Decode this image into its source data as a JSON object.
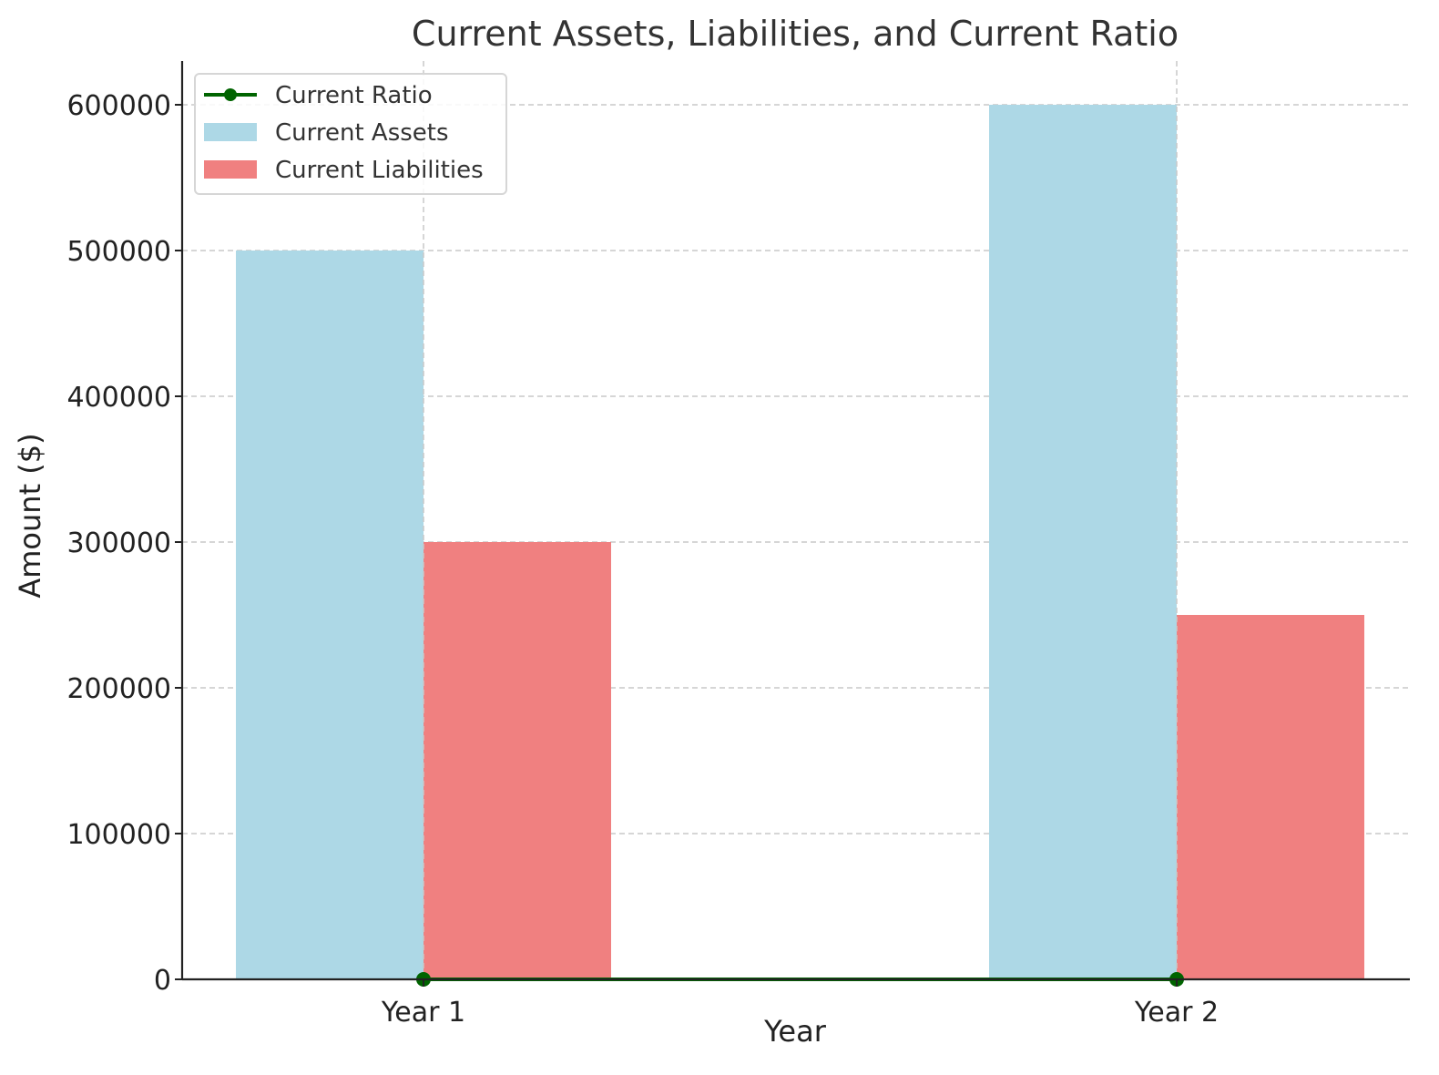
{
  "chart_data": {
    "type": "bar",
    "title": "Current Assets, Liabilities, and Current Ratio",
    "xlabel": "Year",
    "ylabel": "Amount ($)",
    "categories": [
      "Year 1",
      "Year 2"
    ],
    "ylim": [
      0,
      630000
    ],
    "yticks": [
      0,
      100000,
      200000,
      300000,
      400000,
      500000,
      600000
    ],
    "ytick_labels": [
      "0",
      "100000",
      "200000",
      "300000",
      "400000",
      "500000",
      "600000"
    ],
    "grid": true,
    "legend_position": "top-left",
    "series": [
      {
        "name": "Current Assets",
        "kind": "bar",
        "color": "#add8e6",
        "values": [
          500000,
          600000
        ]
      },
      {
        "name": "Current Liabilities",
        "kind": "bar",
        "color": "#f08080",
        "values": [
          300000,
          250000
        ]
      },
      {
        "name": "Current Ratio",
        "kind": "line",
        "color": "#006400",
        "values": [
          1.67,
          2.4
        ]
      }
    ],
    "legend_order": [
      "Current Ratio",
      "Current Assets",
      "Current Liabilities"
    ]
  }
}
